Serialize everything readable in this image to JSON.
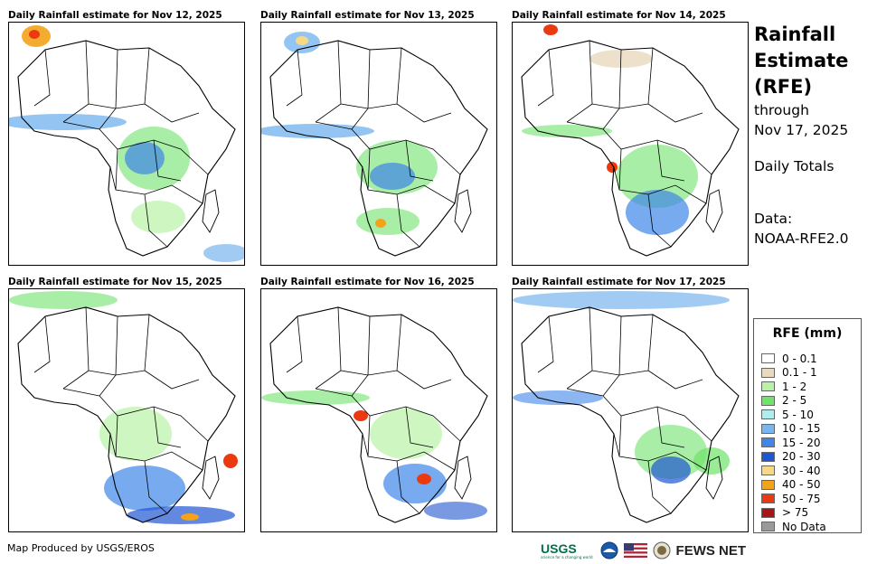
{
  "panels": [
    {
      "title": "Daily Rainfall estimate for Nov 12, 2025"
    },
    {
      "title": "Daily Rainfall estimate for Nov 13, 2025"
    },
    {
      "title": "Daily Rainfall estimate for Nov 14, 2025"
    },
    {
      "title": "Daily Rainfall estimate for Nov 15, 2025"
    },
    {
      "title": "Daily Rainfall estimate for Nov 16, 2025"
    },
    {
      "title": "Daily Rainfall estimate for Nov 17, 2025"
    }
  ],
  "header": {
    "title_line1": "Rainfall",
    "title_line2": "Estimate",
    "title_line3": "(RFE)",
    "through": "through",
    "date": "Nov 17, 2025",
    "totals": "Daily Totals",
    "data_label": "Data:",
    "data_source": "NOAA-RFE2.0"
  },
  "legend": {
    "title": "RFE (mm)",
    "items": [
      {
        "label": "0 - 0.1",
        "color": "#ffffff"
      },
      {
        "label": "0.1 - 1",
        "color": "#e9d9bf"
      },
      {
        "label": "1 - 2",
        "color": "#b9f2a6"
      },
      {
        "label": "2 - 5",
        "color": "#6fe36a"
      },
      {
        "label": "5 - 10",
        "color": "#aeeef0"
      },
      {
        "label": "10 - 15",
        "color": "#79b5ee"
      },
      {
        "label": "15 - 20",
        "color": "#3f86e8"
      },
      {
        "label": "20 - 30",
        "color": "#1f57d1"
      },
      {
        "label": "30 - 40",
        "color": "#f6d987"
      },
      {
        "label": "40 - 50",
        "color": "#f2a31a"
      },
      {
        "label": "50 - 75",
        "color": "#eb3a12"
      },
      {
        "label": "> 75",
        "color": "#a8161a"
      },
      {
        "label": "No Data",
        "color": "#9a9a9a"
      }
    ]
  },
  "footer": {
    "credit": "Map Produced by USGS/EROS",
    "usgs": "USGS",
    "usgs_tagline": "science for a changing world",
    "fews": "FEWS NET"
  }
}
